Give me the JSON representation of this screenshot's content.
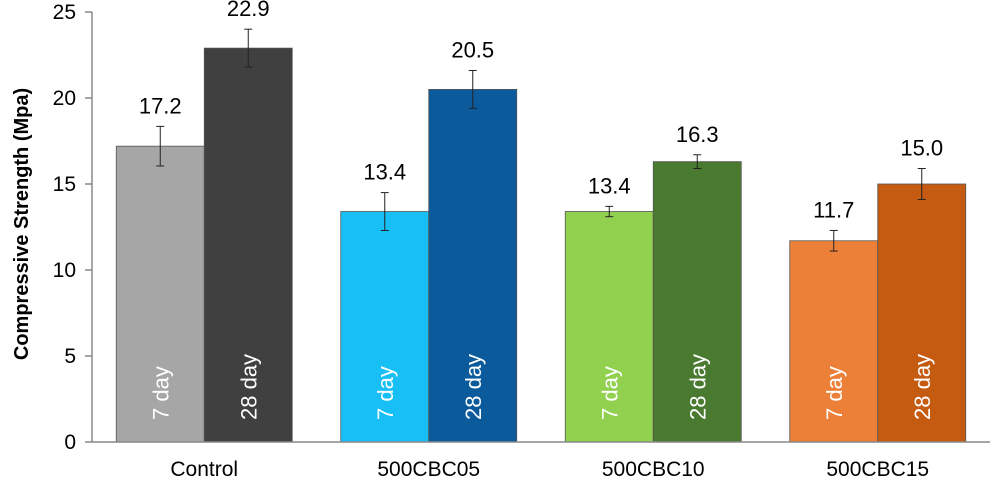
{
  "chart_data": {
    "type": "bar",
    "ylabel": "Compressive Strength (Mpa)",
    "xlabel": "",
    "ylim": [
      0,
      25
    ],
    "yticks": [
      "0",
      "5",
      "10",
      "15",
      "20",
      "25"
    ],
    "grid": false,
    "categories": [
      "Control",
      "500CBC05",
      "500CBC10",
      "500CBC15"
    ],
    "series": [
      {
        "name": "7 day",
        "values": [
          17.2,
          13.4,
          13.4,
          11.7
        ],
        "errors": [
          1.15,
          1.1,
          0.3,
          0.6
        ],
        "labels": [
          "17.2",
          "13.4",
          "13.4",
          "11.7"
        ]
      },
      {
        "name": "28 day",
        "values": [
          22.9,
          20.5,
          16.3,
          15.0
        ],
        "errors": [
          1.1,
          1.1,
          0.4,
          0.9
        ],
        "labels": [
          "22.9",
          "20.5",
          "16.3",
          "15.0"
        ]
      }
    ],
    "colors": [
      [
        "#a6a6a6",
        "#404040"
      ],
      [
        "#17bff5",
        "#0a5a9c"
      ],
      [
        "#92d050",
        "#4a7a30"
      ],
      [
        "#ed8038",
        "#c55a11"
      ]
    ]
  }
}
